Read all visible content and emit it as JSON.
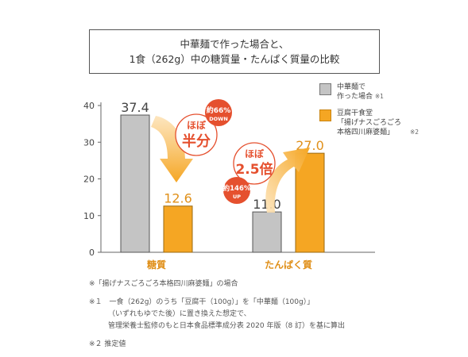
{
  "title": {
    "line1": "中華麺で作った場合と、",
    "line2": "1食（262g）中の糖質量・たんぱく質量の比較"
  },
  "legend": [
    {
      "lines": [
        "中華麺で",
        "作った場合"
      ],
      "note": "※1",
      "color": "#c4c4c4"
    },
    {
      "lines": [
        "豆腐干食堂",
        "「揚げナスごろごろ",
        "本格四川麻婆麺」"
      ],
      "note": "※2",
      "color": "#f5a623"
    }
  ],
  "annotations": {
    "half": {
      "main": "ほぼ",
      "big": "半分",
      "badge_top": "約66%",
      "badge_bottom": "DOWN"
    },
    "double": {
      "main": "ほぼ",
      "big": "2.5倍",
      "badge_top": "約146%",
      "badge_bottom": "UP"
    }
  },
  "chart_data": {
    "type": "bar",
    "categories": [
      "糖質",
      "たんぱく質"
    ],
    "series": [
      {
        "name": "中華麺で作った場合",
        "values": [
          37.4,
          11.0
        ],
        "color": "#c4c4c4"
      },
      {
        "name": "豆腐干食堂「揚げナスごろごろ本格四川麻婆麺」",
        "values": [
          12.6,
          27.0
        ],
        "color": "#f5a623"
      }
    ],
    "value_labels": [
      [
        "37.4",
        "11.0"
      ],
      [
        "12.6",
        "27.0"
      ]
    ],
    "yticks": [
      0,
      10,
      20,
      30,
      40
    ],
    "ylim": [
      0,
      40
    ]
  },
  "notes": [
    "※「揚げナスごろごろ本格四川麻婆麺」の場合",
    "※１　一食（262g）のうち「豆腐干（100g）」を「中華麺（100g）」",
    "（いずれもゆでた後）に置き換えた想定で、",
    "管理栄養士監修のもと日本食品標準成分表 2020 年版（8 訂）を基に算出",
    "※２ 推定値"
  ]
}
